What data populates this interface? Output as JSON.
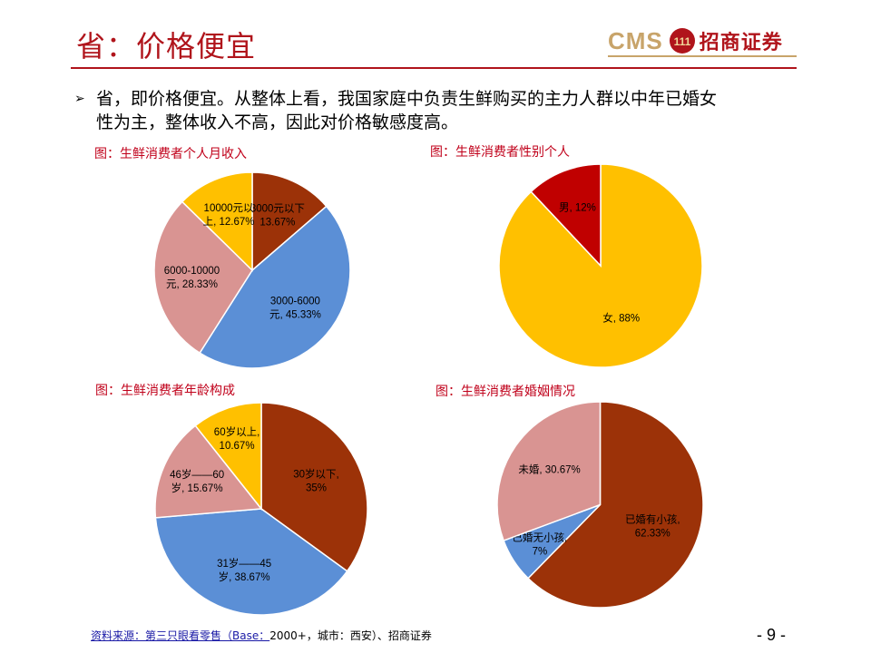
{
  "header": {
    "title": "省：价格便宜",
    "logo_latin": "CMS",
    "logo_mark": "111",
    "logo_cn": "招商证券",
    "accent_color": "#b0141b",
    "logo_gold": "#c8a46a"
  },
  "bullet": {
    "text_line1": "省，即价格便宜。从整体上看，我国家庭中负责生鲜购买的主力人群以中年已婚女",
    "text_line2": "性为主，整体收入不高，因此对价格敏感度高。"
  },
  "chart_data": [
    {
      "type": "pie",
      "title": "图：生鲜消费者个人月收入",
      "slices": [
        {
          "label": [
            "3000元以下",
            "13.67%"
          ],
          "value": 13.67,
          "color": "#9c3208"
        },
        {
          "label": [
            "3000-6000",
            "元, 45.33%"
          ],
          "value": 45.33,
          "color": "#5b8fd6"
        },
        {
          "label": [
            "6000-10000",
            "元, 28.33%"
          ],
          "value": 28.33,
          "color": "#d99492"
        },
        {
          "label": [
            "10000元以",
            "上, 12.67%"
          ],
          "value": 12.67,
          "color": "#ffc000"
        }
      ]
    },
    {
      "type": "pie",
      "title": "图：生鲜消费者性别个人",
      "slices": [
        {
          "label": [
            "女, 88%"
          ],
          "value": 88,
          "color": "#ffc000"
        },
        {
          "label": [
            "男, 12%"
          ],
          "value": 12,
          "color": "#c00000"
        }
      ]
    },
    {
      "type": "pie",
      "title": "图：生鲜消费者年龄构成",
      "slices": [
        {
          "label": [
            "30岁以下,",
            "35%"
          ],
          "value": 35,
          "color": "#9c3208"
        },
        {
          "label": [
            "31岁——45",
            "岁, 38.67%"
          ],
          "value": 38.67,
          "color": "#5b8fd6"
        },
        {
          "label": [
            "46岁——60",
            "岁, 15.67%"
          ],
          "value": 15.67,
          "color": "#d99492"
        },
        {
          "label": [
            "60岁以上,",
            "10.67%"
          ],
          "value": 10.67,
          "color": "#ffc000"
        }
      ]
    },
    {
      "type": "pie",
      "title": "图：生鲜消费者婚姻情况",
      "slices": [
        {
          "label": [
            "已婚有小孩,",
            "62.33%"
          ],
          "value": 62.33,
          "color": "#9c3208"
        },
        {
          "label": [
            "已婚无小孩,",
            "7%"
          ],
          "value": 7,
          "color": "#5b8fd6"
        },
        {
          "label": [
            "未婚, 30.67%"
          ],
          "value": 30.67,
          "color": "#d99492"
        }
      ]
    }
  ],
  "footer": {
    "source_link": "资料来源：第三只眼看零售（Base：",
    "source_rest": "2000+，城市：西安）、招商证券",
    "page_number": "- 9 -"
  }
}
